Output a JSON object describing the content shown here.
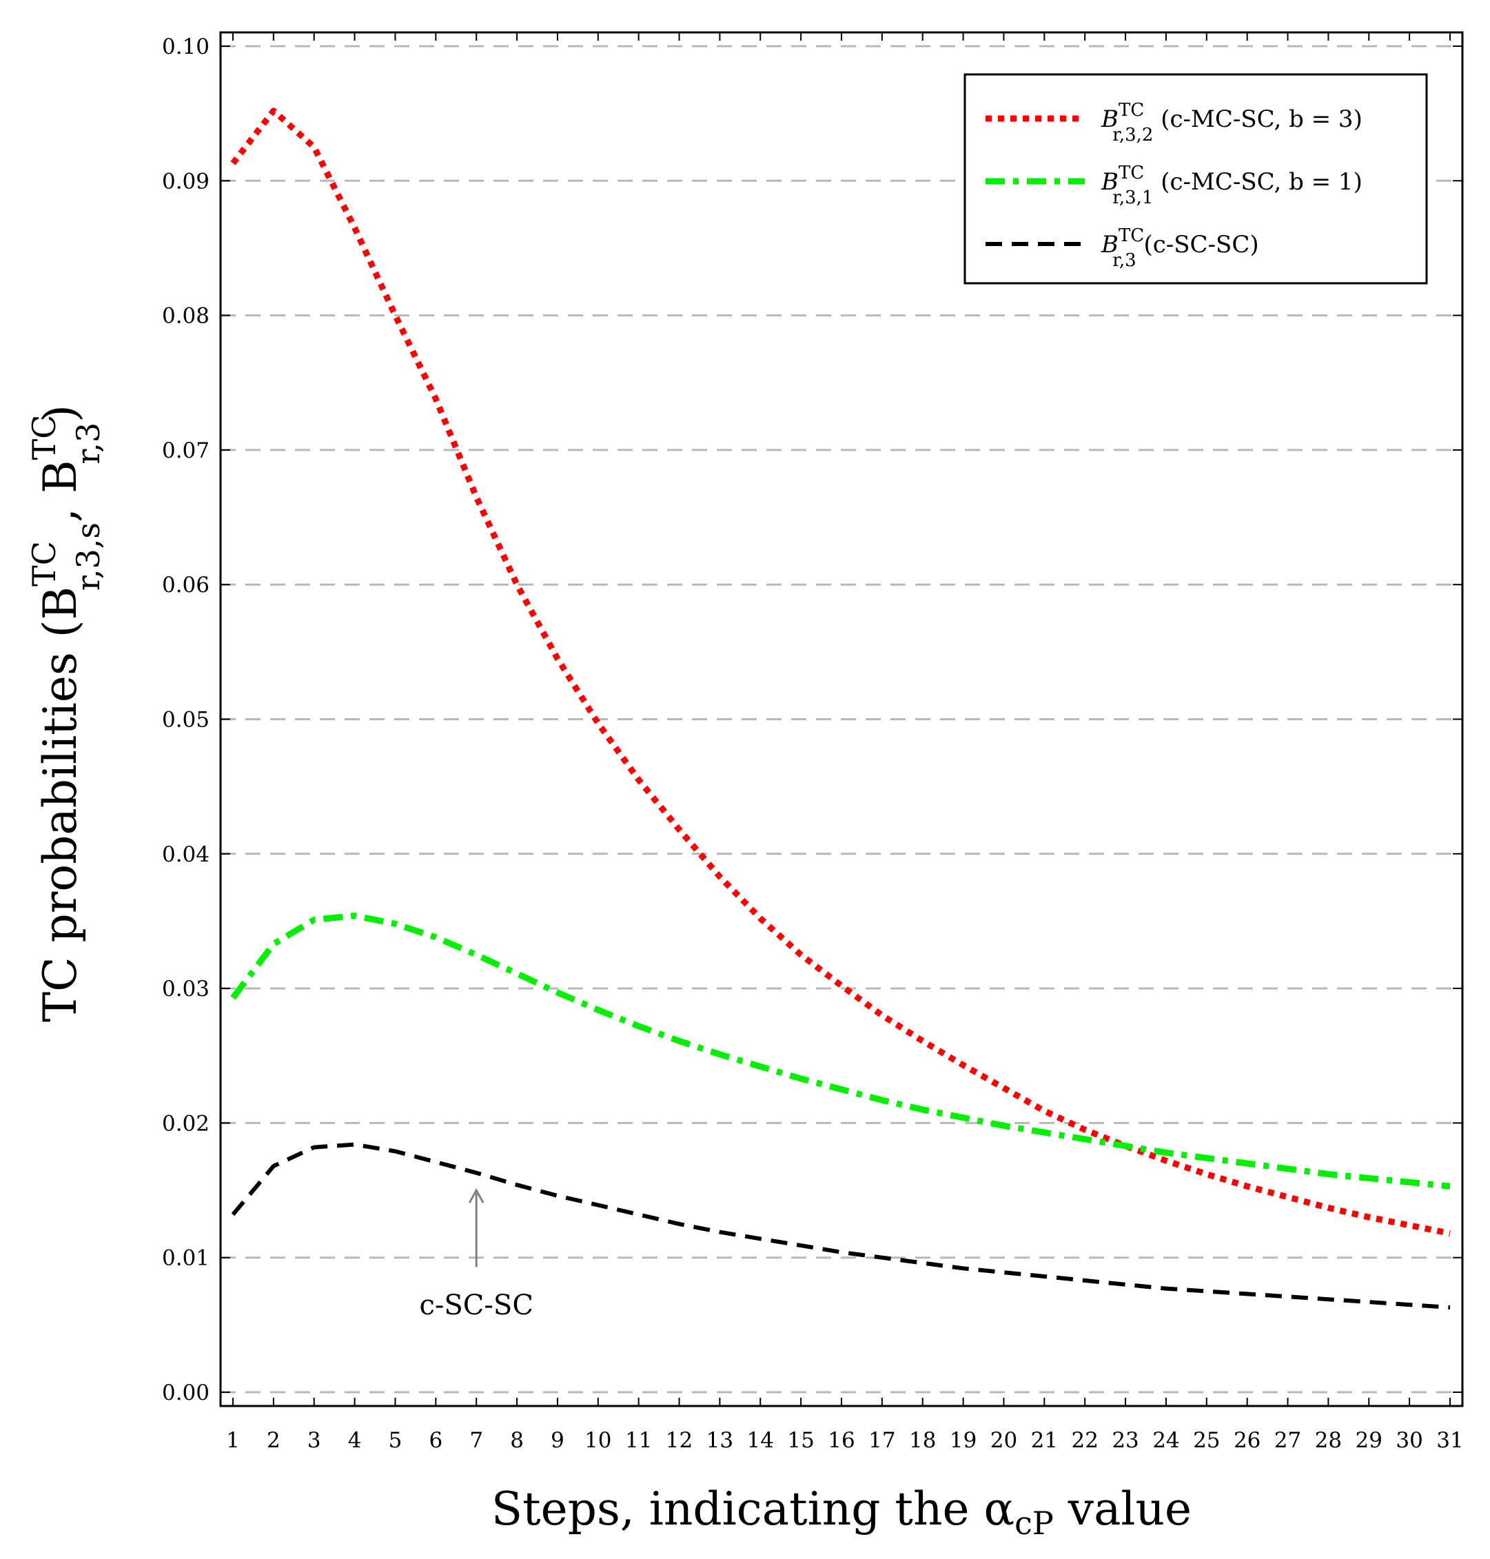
{
  "chart_data": {
    "type": "line",
    "xlabel": "Steps, indicating the α",
    "xlabel_sub": "cP",
    "xlabel_suffix": " value",
    "ylabel": "TC probabilities (B",
    "ylabel_parts": {
      "b1_sup": "TC",
      "b1_sub": "r,3,s",
      "comma": ", B",
      "b2_sup": "TC",
      "b2_sub": "r,3",
      "close": ")"
    },
    "xlim": [
      1,
      31
    ],
    "ylim": [
      0,
      0.1
    ],
    "x_ticks": [
      1,
      2,
      3,
      4,
      5,
      6,
      7,
      8,
      9,
      10,
      11,
      12,
      13,
      14,
      15,
      16,
      17,
      18,
      19,
      20,
      21,
      22,
      23,
      24,
      25,
      26,
      27,
      28,
      29,
      30,
      31
    ],
    "y_ticks": [
      0.0,
      0.01,
      0.02,
      0.03,
      0.04,
      0.05,
      0.06,
      0.07,
      0.08,
      0.09,
      0.1
    ],
    "y_tick_labels": [
      "0.00",
      "0.01",
      "0.02",
      "0.03",
      "0.04",
      "0.05",
      "0.06",
      "0.07",
      "0.08",
      "0.09",
      "0.10"
    ],
    "grid": "horizontal dashed",
    "legend_position": "top-right",
    "x": [
      1,
      2,
      3,
      4,
      5,
      6,
      7,
      8,
      9,
      10,
      11,
      12,
      13,
      14,
      15,
      16,
      17,
      18,
      19,
      20,
      21,
      22,
      23,
      24,
      25,
      26,
      27,
      28,
      29,
      30,
      31
    ],
    "series": [
      {
        "name": "B r,3,2 TC (c-MC-SC, b = 3)",
        "legend": {
          "base": "B",
          "sup": "TC",
          "sub": "r,3,2",
          "desc": " (c-MC-SC, b = 3)"
        },
        "color": "#ff0000",
        "style": "dotted",
        "values": [
          0.0913,
          0.0952,
          0.0925,
          0.0865,
          0.08,
          0.0738,
          0.0665,
          0.06,
          0.0545,
          0.0497,
          0.0455,
          0.0418,
          0.0383,
          0.0352,
          0.0325,
          0.0302,
          0.028,
          0.0261,
          0.0243,
          0.0226,
          0.0209,
          0.0195,
          0.0183,
          0.0172,
          0.0162,
          0.0153,
          0.0145,
          0.0137,
          0.013,
          0.0124,
          0.0118
        ]
      },
      {
        "name": "B r,3,1 TC (c-MC-SC, b = 1)",
        "legend": {
          "base": "B",
          "sup": "TC",
          "sub": "r,3,1",
          "desc": " (c-MC-SC, b = 1)"
        },
        "color": "#00ee00",
        "style": "dashdot",
        "values": [
          0.0293,
          0.0333,
          0.0351,
          0.0354,
          0.0348,
          0.0338,
          0.0325,
          0.0311,
          0.0297,
          0.0284,
          0.0272,
          0.0261,
          0.0251,
          0.0242,
          0.0233,
          0.0225,
          0.0217,
          0.021,
          0.0204,
          0.0198,
          0.0193,
          0.0188,
          0.0183,
          0.0178,
          0.0174,
          0.017,
          0.0166,
          0.0162,
          0.0159,
          0.0156,
          0.0153
        ]
      },
      {
        "name": "B r,3 TC (c-SC-SC)",
        "legend": {
          "base": "B",
          "sup": "TC",
          "sub": "r,3",
          "desc": " (c-SC-SC)"
        },
        "color": "#000000",
        "style": "dashed",
        "values": [
          0.0132,
          0.0168,
          0.0182,
          0.0184,
          0.0179,
          0.0171,
          0.0163,
          0.0154,
          0.0146,
          0.0139,
          0.0132,
          0.0125,
          0.0119,
          0.0114,
          0.0109,
          0.0104,
          0.01,
          0.0096,
          0.0092,
          0.0089,
          0.0086,
          0.0083,
          0.008,
          0.0077,
          0.0075,
          0.0073,
          0.0071,
          0.0069,
          0.0067,
          0.0065,
          0.0063
        ]
      }
    ],
    "annotations": [
      {
        "text": "c-SC-SC",
        "x": 7,
        "arrow_tip_y": 0.015,
        "arrow_tail_y": 0.0093,
        "label_y": 0.0065
      }
    ]
  },
  "colors": {
    "grid": "#b8b8b8",
    "annotation": "#808080"
  }
}
